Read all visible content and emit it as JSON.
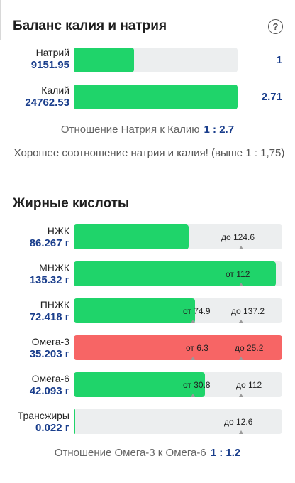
{
  "balance": {
    "title": "Баланс калия и натрия",
    "help_icon": "question-circle-icon",
    "help_glyph": "?",
    "rows": [
      {
        "name": "Натрий",
        "value": "9151.95",
        "ratio_value": "1",
        "fill_fraction": 0.37
      },
      {
        "name": "Калий",
        "value": "24762.53",
        "ratio_value": "2.71",
        "fill_fraction": 1.0
      }
    ],
    "ratio_label": "Отношение Натрия к Калию",
    "ratio_value": "1 : 2.7",
    "message": "Хорошее соотношение натрия и калия! (выше 1 : 1,75)"
  },
  "fatty_acids": {
    "title": "Жирные кислоты",
    "rows": [
      {
        "name": "НЖК",
        "value": "86.267 г",
        "fill_fraction": 0.55,
        "color": "green",
        "min_label": "",
        "max_label": "до 124.6"
      },
      {
        "name": "МНЖК",
        "value": "135.32 г",
        "fill_fraction": 0.97,
        "color": "green",
        "min_label": "от 112",
        "max_label": ""
      },
      {
        "name": "ПНЖК",
        "value": "72.418 г",
        "fill_fraction": 0.58,
        "color": "green",
        "min_label": "от 74.9",
        "max_label": "до 137.2"
      },
      {
        "name": "Омега-3",
        "value": "35.203 г",
        "fill_fraction": 1.0,
        "color": "red",
        "min_label": "от 6.3",
        "max_label": "до 25.2"
      },
      {
        "name": "Омега-6",
        "value": "42.093 г",
        "fill_fraction": 0.63,
        "color": "green",
        "min_label": "от 30.8",
        "max_label": "до 112"
      },
      {
        "name": "Трансжиры",
        "value": "0.022 г",
        "fill_fraction": 0.005,
        "color": "green",
        "min_label": "",
        "max_label": "до 12.6"
      }
    ],
    "ratio_label": "Отношение Омега-3 к Омега-6",
    "ratio_value": "1 : 1.2"
  },
  "colors": {
    "green": "#1fd46a",
    "red": "#f76565",
    "track": "#eceeef",
    "value_blue": "#1a3e8c"
  }
}
